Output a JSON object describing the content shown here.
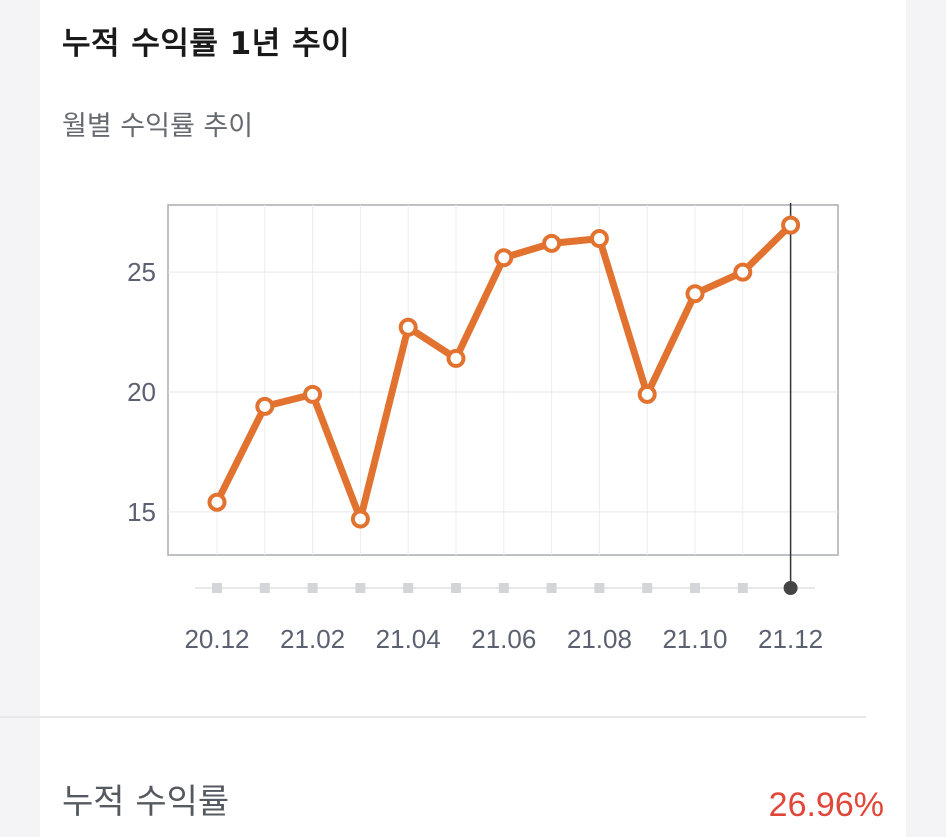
{
  "header": {
    "title": "누적 수익률 1년 추이",
    "subtitle": "월별 수익률 추이"
  },
  "summary": {
    "label": "누적 수익률",
    "value": "26.96%",
    "value_color": "#e0463a"
  },
  "chart_data": {
    "type": "line",
    "x": [
      "20.12",
      "21.01",
      "21.02",
      "21.03",
      "21.04",
      "21.05",
      "21.06",
      "21.07",
      "21.08",
      "21.09",
      "21.10",
      "21.11",
      "21.12"
    ],
    "x_tick_labels": [
      "20.12",
      "21.02",
      "21.04",
      "21.06",
      "21.08",
      "21.10",
      "21.12"
    ],
    "series": [
      {
        "values": [
          15.4,
          19.4,
          19.9,
          14.7,
          22.7,
          21.4,
          25.6,
          26.2,
          26.4,
          19.9,
          24.1,
          25.0,
          26.96
        ],
        "color": "#e2722f"
      }
    ],
    "y_ticks": [
      15,
      20,
      25
    ],
    "ylim": [
      13.2,
      27.8
    ],
    "grid": true,
    "selected_index": 12
  }
}
